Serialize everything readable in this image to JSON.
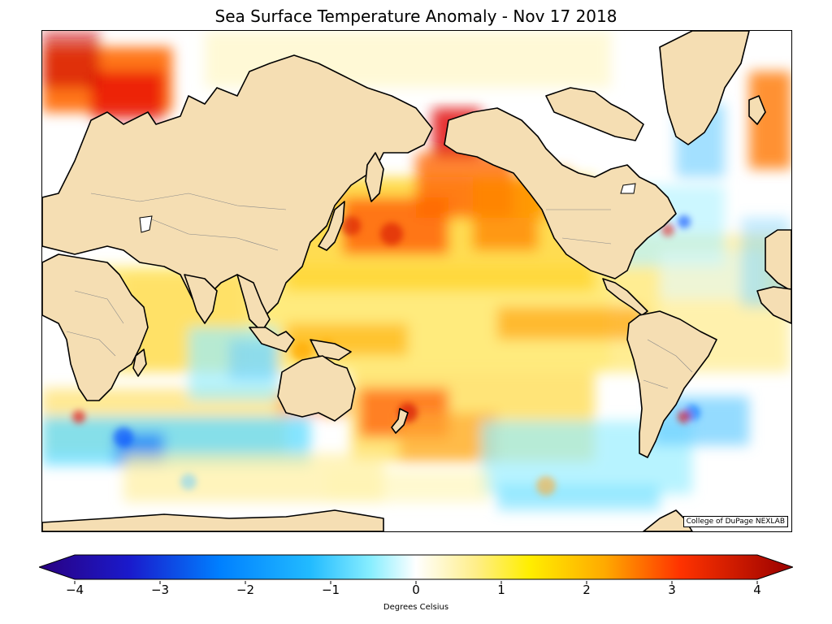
{
  "title": "Sea Surface Temperature Anomaly - Nov 17 2018",
  "credit": "College of DuPage NEXLAB",
  "colorbar": {
    "label": "Degrees Celsius",
    "min": -4,
    "max": 4,
    "ticks": [
      "−4",
      "−3",
      "−2",
      "−1",
      "0",
      "1",
      "2",
      "3",
      "4"
    ],
    "colors": [
      "#2a0080",
      "#0026e6",
      "#0099ff",
      "#33ccff",
      "#99f0ff",
      "#ffffff",
      "#ffee66",
      "#ffcc00",
      "#ff8000",
      "#e60000",
      "#990000"
    ]
  },
  "map": {
    "projection": "Pacific-centered world map",
    "land_color": "#f5deb3",
    "coast_color": "#000000",
    "border_color": "#888888"
  }
}
